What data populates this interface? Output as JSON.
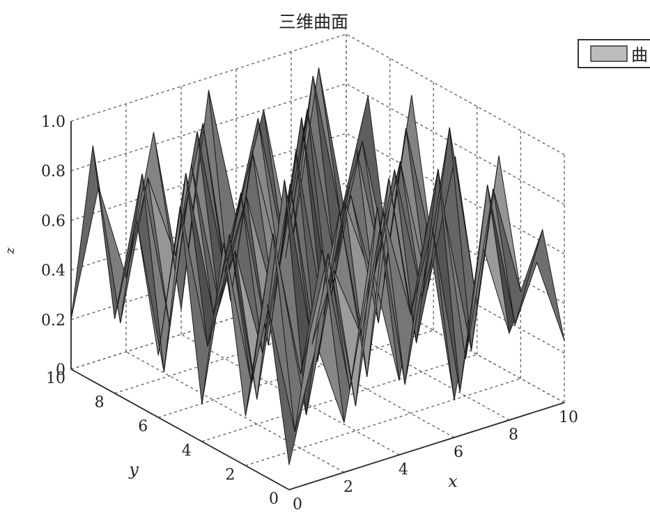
{
  "chart_data": {
    "type": "surface",
    "title": "三维曲面",
    "xlabel": "x",
    "ylabel": "y",
    "zlabel": "z",
    "xlim": [
      0,
      10
    ],
    "ylim": [
      0,
      10
    ],
    "zlim": [
      0,
      1
    ],
    "xticks": [
      "0",
      "2",
      "4",
      "6",
      "8",
      "10"
    ],
    "yticks": [
      "0",
      "2",
      "4",
      "6",
      "8",
      "10"
    ],
    "zticks": [
      "0",
      "0.2",
      "0.4",
      "0.6",
      "0.8",
      "1.0"
    ],
    "grid": true,
    "legend": {
      "position": "top-right",
      "entries": [
        "曲"
      ]
    },
    "x": [
      0,
      1,
      2,
      3,
      4,
      5,
      6,
      7,
      8,
      9,
      10
    ],
    "y": [
      0,
      1,
      2,
      3,
      4,
      5,
      6,
      7,
      8,
      9,
      10
    ],
    "z": [
      [
        0.1,
        0.55,
        0.2,
        0.8,
        0.3,
        0.9,
        0.15,
        0.75,
        0.35,
        0.6,
        0.25
      ],
      [
        0.7,
        0.15,
        0.85,
        0.25,
        0.95,
        0.2,
        0.8,
        0.1,
        0.9,
        0.3,
        0.65
      ],
      [
        0.2,
        0.9,
        0.3,
        0.75,
        0.1,
        0.85,
        0.4,
        0.95,
        0.15,
        0.8,
        0.35
      ],
      [
        0.85,
        0.25,
        0.7,
        0.05,
        0.6,
        0.3,
        0.9,
        0.2,
        0.7,
        0.1,
        0.85
      ],
      [
        0.15,
        0.8,
        0.1,
        0.95,
        0.25,
        0.75,
        0.05,
        0.85,
        0.3,
        0.95,
        0.2
      ],
      [
        0.9,
        0.3,
        0.65,
        0.2,
        0.85,
        0.1,
        0.7,
        0.35,
        0.8,
        0.25,
        0.75
      ],
      [
        0.25,
        0.95,
        0.35,
        0.8,
        0.15,
        0.9,
        0.2,
        0.65,
        0.1,
        0.85,
        0.3
      ],
      [
        0.75,
        0.1,
        0.9,
        0.3,
        0.7,
        0.25,
        0.95,
        0.15,
        0.75,
        0.2,
        0.9
      ],
      [
        0.3,
        0.85,
        0.2,
        0.95,
        0.35,
        0.8,
        0.3,
        0.9,
        0.25,
        0.7,
        0.15
      ],
      [
        0.95,
        0.2,
        0.75,
        0.4,
        0.9,
        0.15,
        0.85,
        0.25,
        0.95,
        0.35,
        0.8
      ],
      [
        0.2,
        0.7,
        0.3,
        0.85,
        0.1,
        0.95,
        0.4,
        0.8,
        0.2,
        0.9,
        0.25
      ]
    ]
  },
  "colors": {
    "background": "#ffffff",
    "axis": "#2a2a2a",
    "grid": "#666666",
    "surface_edge": "#1a1a1a",
    "shade_dark": "#111111",
    "shade_light": "#d4d4d4",
    "legend_swatch": "#bdbdbd"
  }
}
